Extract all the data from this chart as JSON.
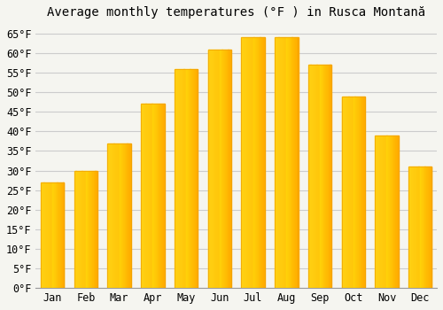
{
  "title": "Average monthly temperatures (°F ) in Rusca Montană",
  "months": [
    "Jan",
    "Feb",
    "Mar",
    "Apr",
    "May",
    "Jun",
    "Jul",
    "Aug",
    "Sep",
    "Oct",
    "Nov",
    "Dec"
  ],
  "values": [
    27,
    30,
    37,
    47,
    56,
    61,
    64,
    64,
    57,
    49,
    39,
    31
  ],
  "bar_color_main": "#FFBB33",
  "bar_color_light": "#FFD878",
  "bar_color_edge": "#F0A000",
  "background_color": "#f5f5f0",
  "grid_color": "#cccccc",
  "yticks": [
    0,
    5,
    10,
    15,
    20,
    25,
    30,
    35,
    40,
    45,
    50,
    55,
    60,
    65
  ],
  "ylim": [
    0,
    67
  ],
  "title_fontsize": 10,
  "tick_fontsize": 8.5,
  "bar_width": 0.7
}
